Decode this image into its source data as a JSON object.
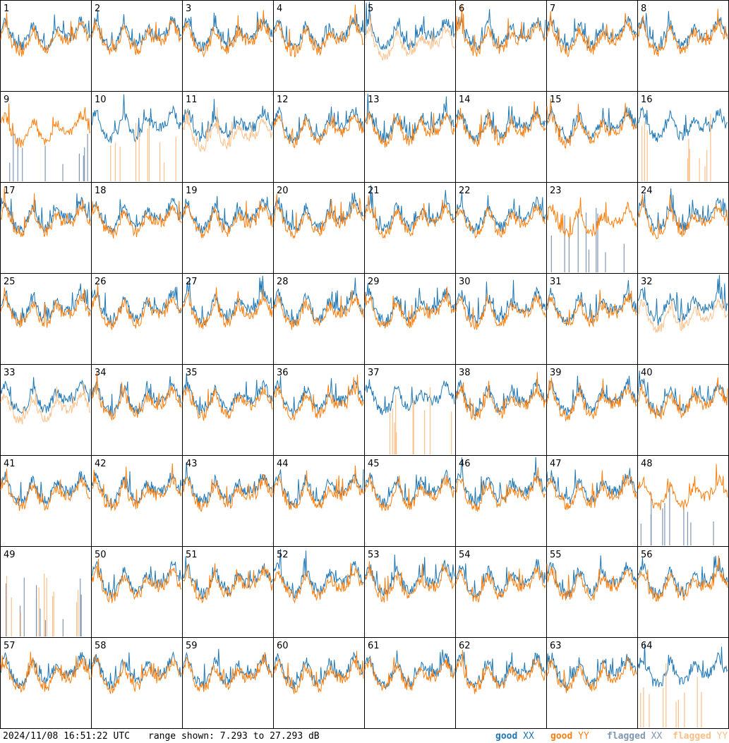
{
  "chart_data": {
    "type": "line",
    "panels": [
      {
        "label": "1",
        "xx": "good",
        "yy": "good"
      },
      {
        "label": "2",
        "xx": "good",
        "yy": "good"
      },
      {
        "label": "3",
        "xx": "good",
        "yy": "good"
      },
      {
        "label": "4",
        "xx": "good",
        "yy": "good"
      },
      {
        "label": "5",
        "xx": "good",
        "yy": "flagged"
      },
      {
        "label": "6",
        "xx": "good",
        "yy": "good"
      },
      {
        "label": "7",
        "xx": "good",
        "yy": "good"
      },
      {
        "label": "8",
        "xx": "good",
        "yy": "good"
      },
      {
        "label": "9",
        "xx": "flagged",
        "yy": "good"
      },
      {
        "label": "10",
        "xx": "good",
        "yy": "flagged"
      },
      {
        "label": "11",
        "xx": "good",
        "yy": "flagged"
      },
      {
        "label": "12",
        "xx": "good",
        "yy": "good"
      },
      {
        "label": "13",
        "xx": "good",
        "yy": "good"
      },
      {
        "label": "14",
        "xx": "good",
        "yy": "good"
      },
      {
        "label": "15",
        "xx": "good",
        "yy": "good"
      },
      {
        "label": "16",
        "xx": "good",
        "yy": "flagged"
      },
      {
        "label": "17",
        "xx": "good",
        "yy": "good"
      },
      {
        "label": "18",
        "xx": "good",
        "yy": "good"
      },
      {
        "label": "19",
        "xx": "good",
        "yy": "good"
      },
      {
        "label": "20",
        "xx": "good",
        "yy": "good"
      },
      {
        "label": "21",
        "xx": "good",
        "yy": "good"
      },
      {
        "label": "22",
        "xx": "good",
        "yy": "good"
      },
      {
        "label": "23",
        "xx": "flagged",
        "yy": "good"
      },
      {
        "label": "24",
        "xx": "good",
        "yy": "good"
      },
      {
        "label": "25",
        "xx": "good",
        "yy": "good"
      },
      {
        "label": "26",
        "xx": "good",
        "yy": "good"
      },
      {
        "label": "27",
        "xx": "good",
        "yy": "good"
      },
      {
        "label": "28",
        "xx": "good",
        "yy": "good"
      },
      {
        "label": "29",
        "xx": "good",
        "yy": "good"
      },
      {
        "label": "30",
        "xx": "good",
        "yy": "good"
      },
      {
        "label": "31",
        "xx": "good",
        "yy": "good"
      },
      {
        "label": "32",
        "xx": "good",
        "yy": "flagged"
      },
      {
        "label": "33",
        "xx": "good",
        "yy": "flagged"
      },
      {
        "label": "34",
        "xx": "good",
        "yy": "good"
      },
      {
        "label": "35",
        "xx": "good",
        "yy": "good"
      },
      {
        "label": "36",
        "xx": "good",
        "yy": "good"
      },
      {
        "label": "37",
        "xx": "good",
        "yy": "flagged"
      },
      {
        "label": "38",
        "xx": "good",
        "yy": "good"
      },
      {
        "label": "39",
        "xx": "good",
        "yy": "good"
      },
      {
        "label": "40",
        "xx": "good",
        "yy": "good"
      },
      {
        "label": "41",
        "xx": "good",
        "yy": "good"
      },
      {
        "label": "42",
        "xx": "good",
        "yy": "good"
      },
      {
        "label": "43",
        "xx": "good",
        "yy": "good"
      },
      {
        "label": "44",
        "xx": "good",
        "yy": "good"
      },
      {
        "label": "45",
        "xx": "good",
        "yy": "good"
      },
      {
        "label": "46",
        "xx": "good",
        "yy": "good"
      },
      {
        "label": "47",
        "xx": "good",
        "yy": "good"
      },
      {
        "label": "48",
        "xx": "flagged",
        "yy": "good"
      },
      {
        "label": "49",
        "xx": "flagged",
        "yy": "flagged"
      },
      {
        "label": "50",
        "xx": "good",
        "yy": "good"
      },
      {
        "label": "51",
        "xx": "good",
        "yy": "good"
      },
      {
        "label": "52",
        "xx": "good",
        "yy": "good"
      },
      {
        "label": "53",
        "xx": "good",
        "yy": "good"
      },
      {
        "label": "54",
        "xx": "good",
        "yy": "good"
      },
      {
        "label": "55",
        "xx": "good",
        "yy": "good"
      },
      {
        "label": "56",
        "xx": "good",
        "yy": "good"
      },
      {
        "label": "57",
        "xx": "good",
        "yy": "good"
      },
      {
        "label": "58",
        "xx": "good",
        "yy": "good"
      },
      {
        "label": "59",
        "xx": "good",
        "yy": "good"
      },
      {
        "label": "60",
        "xx": "good",
        "yy": "good"
      },
      {
        "label": "61",
        "xx": "good",
        "yy": "good"
      },
      {
        "label": "62",
        "xx": "good",
        "yy": "good"
      },
      {
        "label": "63",
        "xx": "good",
        "yy": "good"
      },
      {
        "label": "64",
        "xx": "good",
        "yy": "flagged"
      }
    ],
    "legend": [
      {
        "prefix": "good ",
        "pol": "XX",
        "color": "#1f77b4"
      },
      {
        "prefix": "good ",
        "pol": "YY",
        "color": "#ff7f0e"
      },
      {
        "prefix": "flagged ",
        "pol": "XX",
        "color": "#7f97b4"
      },
      {
        "prefix": "flagged ",
        "pol": "YY",
        "color": "#ffbf87"
      }
    ],
    "colors": {
      "good_xx": "#1f77b4",
      "good_yy": "#ff7f0e",
      "flagged_xx": "#7f97b4",
      "flagged_yy": "#ffbf87",
      "border": "#000000"
    },
    "ylim_db": [
      7.293,
      27.293
    ]
  },
  "footer": {
    "timestamp": "2024/11/08 16:51:22 UTC",
    "range": "range shown: 7.293 to 27.293 dB"
  }
}
